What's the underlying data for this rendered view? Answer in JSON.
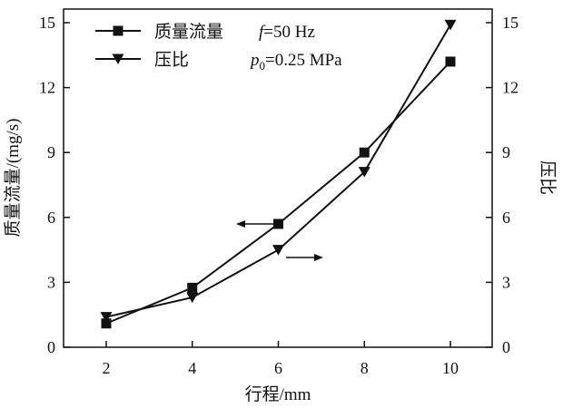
{
  "chart_data": {
    "type": "line",
    "x": [
      2,
      4,
      6,
      8,
      10
    ],
    "xlabel": "行程/mm",
    "ylabel_left": "质量流量/(mg/s)",
    "ylabel_right": "压比",
    "xlim": [
      1,
      11
    ],
    "ylim_left": [
      0,
      15
    ],
    "ylim_right": [
      0,
      15
    ],
    "x_ticks": [
      "2",
      "4",
      "6",
      "8",
      "10"
    ],
    "y_ticks_left": [
      "0",
      "3",
      "6",
      "9",
      "12",
      "15"
    ],
    "y_ticks_right": [
      "0",
      "3",
      "6",
      "9",
      "12",
      "15"
    ],
    "grid": false,
    "legend_position": "top-left",
    "series": [
      {
        "name": "质量流量",
        "axis": "left",
        "marker": "square",
        "values": [
          1.1,
          2.75,
          5.7,
          9.0,
          13.2
        ]
      },
      {
        "name": "压比",
        "axis": "right",
        "marker": "triangle-down",
        "values": [
          1.4,
          2.3,
          4.5,
          8.1,
          14.9
        ]
      }
    ],
    "annotations": [
      {
        "italic": "f",
        "text": "=50 Hz"
      },
      {
        "italic": "p",
        "sub": "0",
        "text": "=0.25 MPa"
      }
    ],
    "arrows": [
      {
        "points_to": "left",
        "series": "质量流量"
      },
      {
        "points_to": "right",
        "series": "压比"
      }
    ]
  }
}
